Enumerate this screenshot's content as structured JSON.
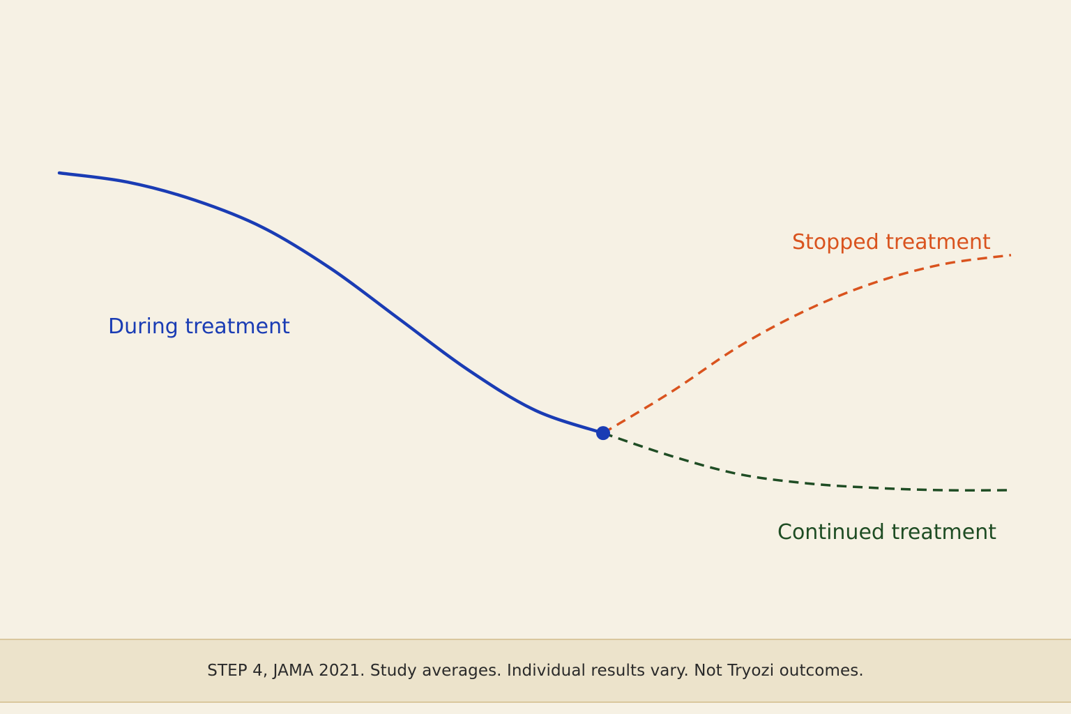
{
  "chart_data": {
    "type": "line",
    "title": "",
    "xlabel": "",
    "ylabel": "",
    "grid": false,
    "axes_visible": false,
    "colors": {
      "background": "#f6f1e4",
      "during": "#1a3cb4",
      "stopped": "#d9531e",
      "continued": "#1f4d24"
    },
    "series": [
      {
        "name": "During treatment",
        "style": "solid",
        "points": [
          [
            0,
            100
          ],
          [
            4,
            98
          ],
          [
            8,
            94
          ],
          [
            12,
            88
          ],
          [
            16,
            79
          ],
          [
            20,
            68
          ],
          [
            24,
            57
          ],
          [
            28,
            48
          ],
          [
            32,
            43
          ]
        ]
      },
      {
        "name": "Stopped treatment",
        "style": "dashed",
        "points": [
          [
            32,
            43
          ],
          [
            36,
            52
          ],
          [
            40,
            62
          ],
          [
            44,
            70
          ],
          [
            48,
            76
          ],
          [
            52,
            80
          ],
          [
            56,
            82
          ]
        ]
      },
      {
        "name": "Continued treatment",
        "style": "dashed",
        "points": [
          [
            32,
            43
          ],
          [
            36,
            38
          ],
          [
            40,
            34
          ],
          [
            44,
            32
          ],
          [
            48,
            31
          ],
          [
            52,
            30.5
          ],
          [
            56,
            30.5
          ]
        ]
      }
    ],
    "marker": {
      "x": 32,
      "y": 43
    }
  },
  "footer": {
    "source_text": "STEP 4, JAMA 2021. Study averages. Individual results vary.  Not Tryozi outcomes."
  }
}
